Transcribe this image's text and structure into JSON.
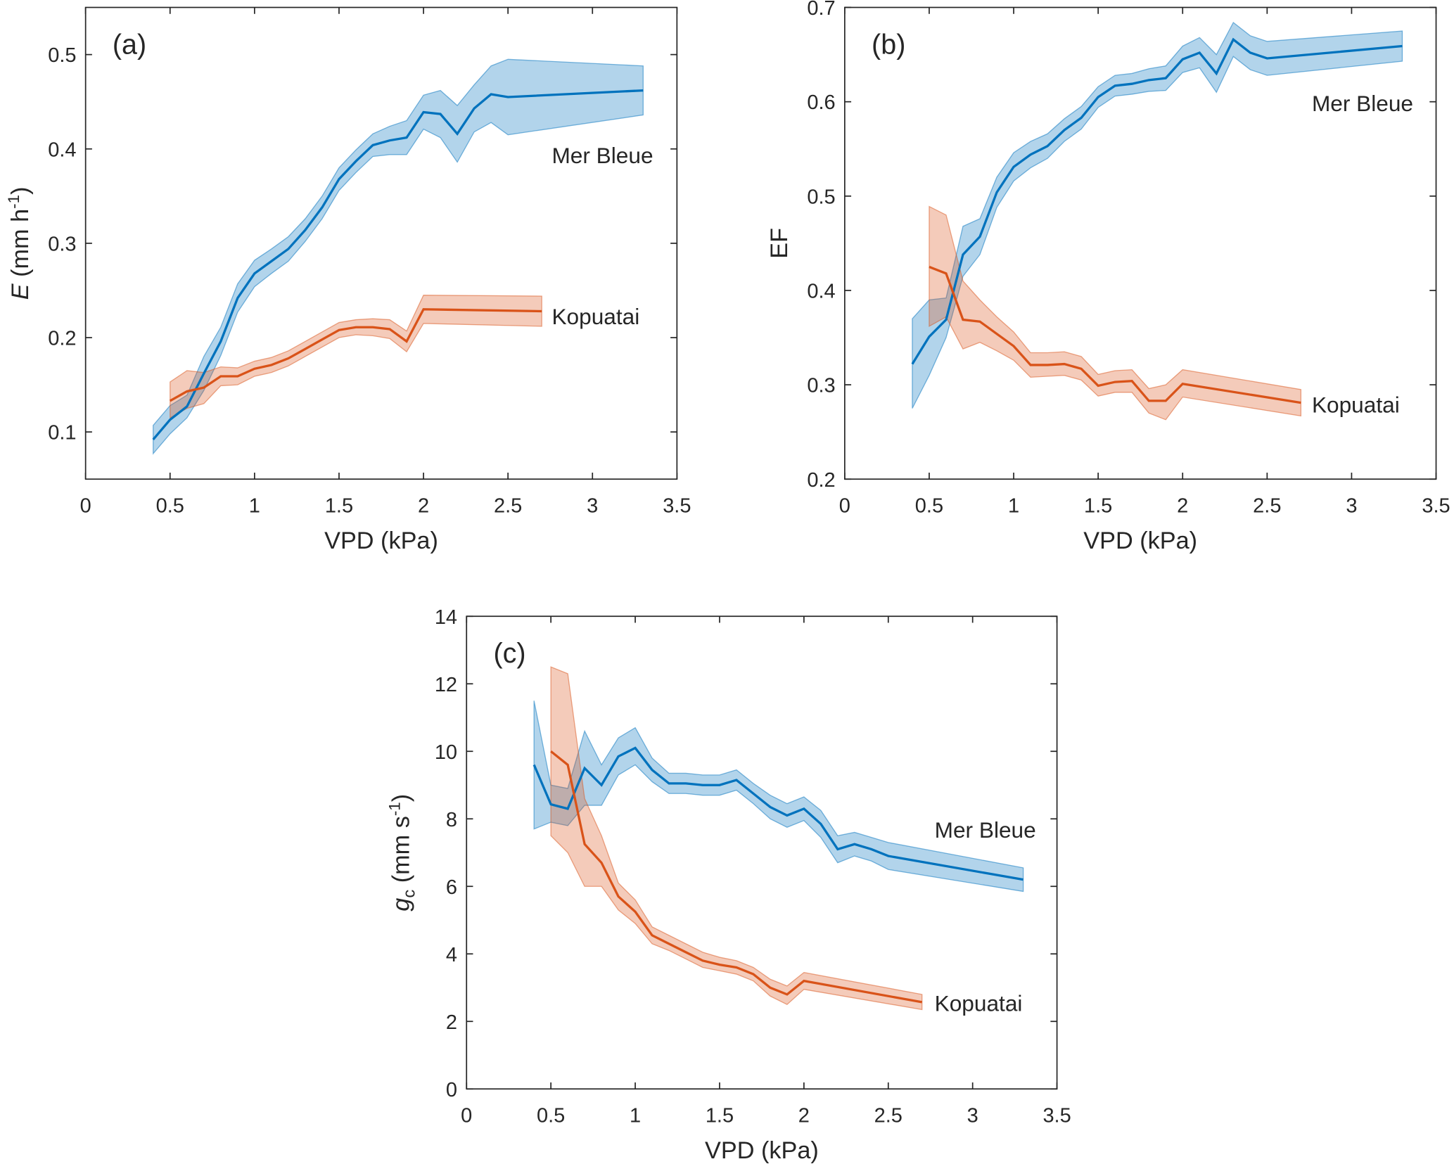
{
  "colors": {
    "mer_bleue": "#0072BD",
    "kopuatai": "#D95319",
    "band_alpha": 0.3
  },
  "chart_data": [
    {
      "type": "line",
      "panel_label": "(a)",
      "xlabel": "VPD (kPa)",
      "ylabel": {
        "symbol": "E",
        "text": " (mm h",
        "sup": "-1",
        "close": ")"
      },
      "xlim": [
        0,
        3.5
      ],
      "ylim": [
        0.05,
        0.55
      ],
      "xticks": [
        "0",
        "0.5",
        "1",
        "1.5",
        "2",
        "2.5",
        "3",
        "3.5"
      ],
      "yticks": [
        "0.1",
        "0.2",
        "0.3",
        "0.4",
        "0.5"
      ],
      "grid": false,
      "series": [
        {
          "name": "Mer Bleue",
          "x": [
            0.4,
            0.5,
            0.6,
            0.7,
            0.8,
            0.9,
            1.0,
            1.1,
            1.2,
            1.3,
            1.4,
            1.5,
            1.6,
            1.7,
            1.8,
            1.9,
            2.0,
            2.1,
            2.2,
            2.3,
            2.4,
            2.5,
            3.3
          ],
          "y": [
            0.092,
            0.113,
            0.127,
            0.162,
            0.196,
            0.242,
            0.268,
            0.281,
            0.294,
            0.314,
            0.338,
            0.368,
            0.387,
            0.404,
            0.409,
            0.412,
            0.439,
            0.437,
            0.416,
            0.443,
            0.458,
            0.455,
            0.462
          ],
          "lower": [
            0.077,
            0.098,
            0.115,
            0.144,
            0.181,
            0.227,
            0.254,
            0.268,
            0.281,
            0.302,
            0.326,
            0.356,
            0.375,
            0.392,
            0.394,
            0.394,
            0.421,
            0.412,
            0.386,
            0.418,
            0.428,
            0.415,
            0.436
          ],
          "upper": [
            0.107,
            0.128,
            0.139,
            0.18,
            0.211,
            0.257,
            0.282,
            0.294,
            0.307,
            0.326,
            0.35,
            0.38,
            0.399,
            0.416,
            0.424,
            0.43,
            0.457,
            0.462,
            0.446,
            0.468,
            0.488,
            0.495,
            0.488
          ]
        },
        {
          "name": "Kopuatai",
          "x": [
            0.5,
            0.6,
            0.7,
            0.8,
            0.9,
            1.0,
            1.1,
            1.2,
            1.3,
            1.4,
            1.5,
            1.6,
            1.7,
            1.8,
            1.9,
            2.0,
            2.7
          ],
          "y": [
            0.133,
            0.143,
            0.147,
            0.159,
            0.159,
            0.167,
            0.171,
            0.178,
            0.188,
            0.198,
            0.208,
            0.211,
            0.211,
            0.209,
            0.196,
            0.23,
            0.228
          ],
          "lower": [
            0.115,
            0.125,
            0.13,
            0.149,
            0.15,
            0.159,
            0.163,
            0.17,
            0.18,
            0.19,
            0.2,
            0.203,
            0.202,
            0.199,
            0.185,
            0.215,
            0.212
          ],
          "upper": [
            0.153,
            0.165,
            0.163,
            0.169,
            0.168,
            0.175,
            0.179,
            0.186,
            0.196,
            0.206,
            0.216,
            0.219,
            0.22,
            0.219,
            0.207,
            0.245,
            0.244
          ]
        }
      ]
    },
    {
      "type": "line",
      "panel_label": "(b)",
      "xlabel": "VPD (kPa)",
      "ylabel": {
        "symbol": "",
        "text": "EF",
        "sup": "",
        "close": ""
      },
      "xlim": [
        0,
        3.5
      ],
      "ylim": [
        0.2,
        0.7
      ],
      "xticks": [
        "0",
        "0.5",
        "1",
        "1.5",
        "2",
        "2.5",
        "3",
        "3.5"
      ],
      "yticks": [
        "0.2",
        "0.3",
        "0.4",
        "0.5",
        "0.6",
        "0.7"
      ],
      "grid": false,
      "series": [
        {
          "name": "Mer Bleue",
          "x": [
            0.4,
            0.5,
            0.6,
            0.7,
            0.8,
            0.9,
            1.0,
            1.1,
            1.2,
            1.3,
            1.4,
            1.5,
            1.6,
            1.7,
            1.8,
            1.9,
            2.0,
            2.1,
            2.2,
            2.3,
            2.4,
            2.5,
            3.3
          ],
          "y": [
            0.322,
            0.351,
            0.369,
            0.438,
            0.457,
            0.504,
            0.531,
            0.544,
            0.553,
            0.57,
            0.583,
            0.605,
            0.617,
            0.619,
            0.623,
            0.625,
            0.645,
            0.652,
            0.63,
            0.666,
            0.652,
            0.646,
            0.659
          ],
          "lower": [
            0.275,
            0.31,
            0.35,
            0.415,
            0.438,
            0.488,
            0.516,
            0.53,
            0.54,
            0.558,
            0.571,
            0.594,
            0.606,
            0.608,
            0.611,
            0.612,
            0.631,
            0.636,
            0.61,
            0.648,
            0.634,
            0.628,
            0.643
          ],
          "upper": [
            0.37,
            0.39,
            0.392,
            0.468,
            0.476,
            0.52,
            0.546,
            0.558,
            0.566,
            0.582,
            0.595,
            0.616,
            0.628,
            0.63,
            0.635,
            0.638,
            0.659,
            0.668,
            0.65,
            0.684,
            0.67,
            0.664,
            0.675
          ]
        },
        {
          "name": "Kopuatai",
          "x": [
            0.5,
            0.6,
            0.7,
            0.8,
            0.9,
            1.0,
            1.1,
            1.2,
            1.3,
            1.4,
            1.5,
            1.6,
            1.7,
            1.8,
            1.9,
            2.0,
            2.7
          ],
          "y": [
            0.425,
            0.418,
            0.369,
            0.367,
            0.354,
            0.341,
            0.321,
            0.321,
            0.322,
            0.317,
            0.299,
            0.303,
            0.304,
            0.283,
            0.283,
            0.301,
            0.281
          ],
          "lower": [
            0.362,
            0.372,
            0.338,
            0.345,
            0.336,
            0.326,
            0.308,
            0.309,
            0.31,
            0.305,
            0.288,
            0.292,
            0.292,
            0.27,
            0.263,
            0.287,
            0.267
          ],
          "upper": [
            0.489,
            0.48,
            0.41,
            0.39,
            0.372,
            0.356,
            0.334,
            0.334,
            0.335,
            0.33,
            0.311,
            0.315,
            0.316,
            0.296,
            0.3,
            0.316,
            0.295
          ]
        }
      ]
    },
    {
      "type": "line",
      "panel_label": "(c)",
      "xlabel": "VPD (kPa)",
      "ylabel": {
        "symbol": "g",
        "sub": "c",
        "text": " (mm s",
        "sup": "-1",
        "close": ")"
      },
      "xlim": [
        0,
        3.5
      ],
      "ylim": [
        0,
        14
      ],
      "xticks": [
        "0",
        "0.5",
        "1",
        "1.5",
        "2",
        "2.5",
        "3",
        "3.5"
      ],
      "yticks": [
        "0",
        "2",
        "4",
        "6",
        "8",
        "10",
        "12",
        "14"
      ],
      "grid": false,
      "series": [
        {
          "name": "Mer Bleue",
          "x": [
            0.4,
            0.5,
            0.6,
            0.7,
            0.8,
            0.9,
            1.0,
            1.1,
            1.2,
            1.3,
            1.4,
            1.5,
            1.6,
            1.7,
            1.8,
            1.9,
            2.0,
            2.1,
            2.2,
            2.3,
            2.4,
            2.5,
            3.3
          ],
          "y": [
            9.6,
            8.43,
            8.3,
            9.5,
            9.0,
            9.85,
            10.1,
            9.45,
            9.05,
            9.05,
            9.0,
            9.0,
            9.15,
            8.75,
            8.35,
            8.1,
            8.3,
            7.85,
            7.1,
            7.25,
            7.1,
            6.9,
            6.2
          ],
          "lower": [
            7.7,
            7.9,
            7.8,
            8.4,
            8.4,
            9.3,
            9.6,
            9.1,
            8.75,
            8.75,
            8.7,
            8.7,
            8.85,
            8.45,
            8.0,
            7.75,
            7.95,
            7.45,
            6.7,
            6.9,
            6.75,
            6.5,
            5.85
          ],
          "upper": [
            11.5,
            9.0,
            8.9,
            10.6,
            9.6,
            10.4,
            10.7,
            9.8,
            9.35,
            9.35,
            9.3,
            9.3,
            9.45,
            9.05,
            8.7,
            8.45,
            8.65,
            8.25,
            7.5,
            7.6,
            7.45,
            7.3,
            6.55
          ]
        },
        {
          "name": "Kopuatai",
          "x": [
            0.5,
            0.6,
            0.7,
            0.8,
            0.9,
            1.0,
            1.1,
            1.2,
            1.3,
            1.4,
            1.5,
            1.6,
            1.7,
            1.8,
            1.9,
            2.0,
            2.7
          ],
          "y": [
            10.0,
            9.6,
            7.25,
            6.7,
            5.7,
            5.25,
            4.55,
            4.3,
            4.05,
            3.8,
            3.68,
            3.6,
            3.4,
            3.0,
            2.8,
            3.2,
            2.57
          ],
          "lower": [
            7.5,
            7.0,
            6.0,
            6.0,
            5.3,
            4.9,
            4.3,
            4.1,
            3.85,
            3.6,
            3.5,
            3.4,
            3.2,
            2.75,
            2.5,
            2.95,
            2.35
          ],
          "upper": [
            12.5,
            12.3,
            8.6,
            7.5,
            6.1,
            5.6,
            4.8,
            4.55,
            4.3,
            4.05,
            3.9,
            3.8,
            3.6,
            3.25,
            3.05,
            3.45,
            2.8
          ]
        }
      ]
    }
  ]
}
